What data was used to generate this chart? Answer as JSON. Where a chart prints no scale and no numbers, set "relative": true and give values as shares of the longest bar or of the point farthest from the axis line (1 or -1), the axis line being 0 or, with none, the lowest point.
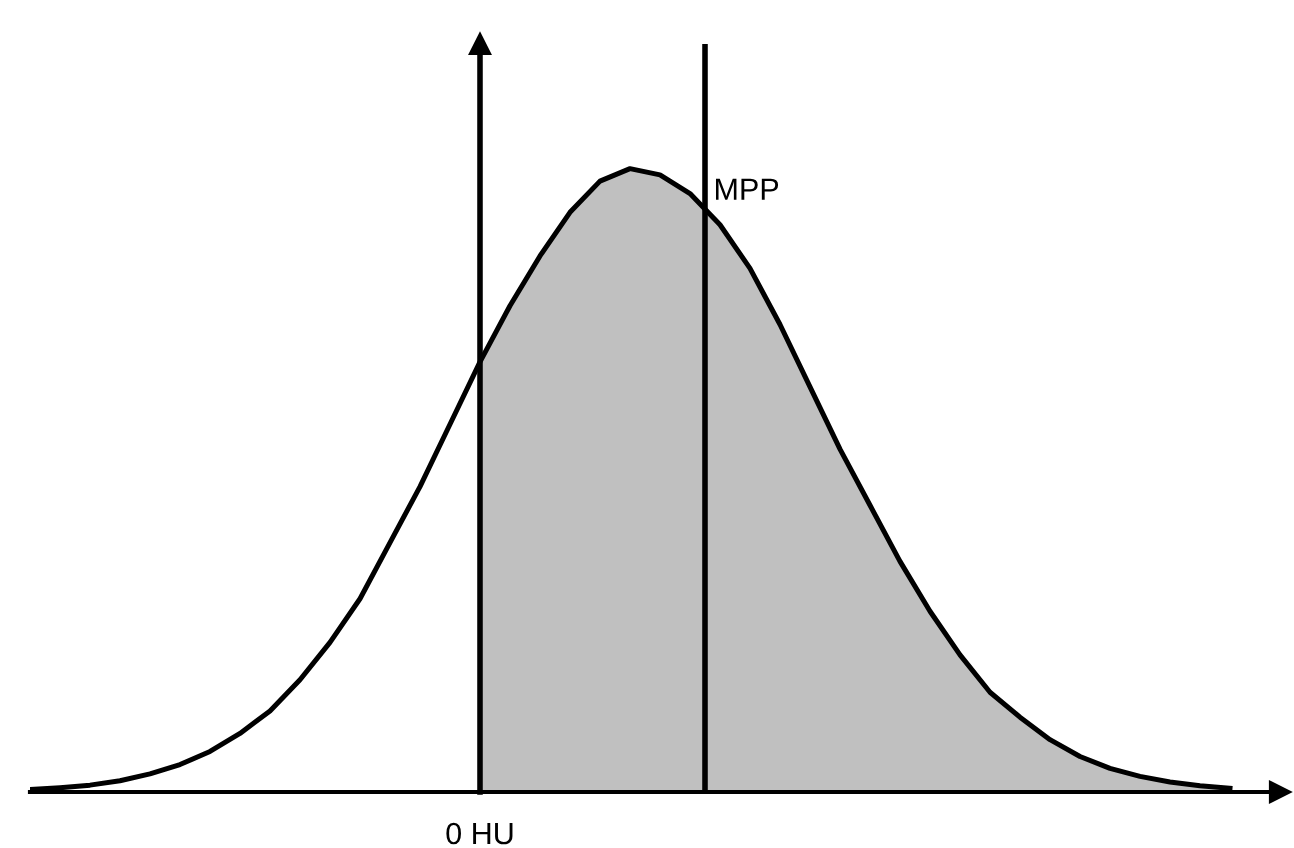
{
  "chart_data": {
    "type": "line",
    "relative": true,
    "categories": [
      null,
      null,
      null,
      null,
      null,
      null,
      null,
      null,
      null,
      null,
      null,
      null,
      null,
      null,
      null,
      null,
      null,
      null,
      null,
      null,
      null,
      null,
      null,
      null,
      null,
      null,
      null,
      null,
      null,
      null,
      null,
      null,
      null,
      null,
      null,
      null,
      null,
      null,
      null,
      null,
      null
    ],
    "series": [
      {
        "type": "area",
        "color": "#c0c0c0",
        "values": [
          null,
          null,
          null,
          null,
          null,
          null,
          null,
          null,
          null,
          null,
          null,
          null,
          null,
          null,
          null,
          0.69,
          0.78,
          0.86,
          0.93,
          0.98,
          1.0,
          0.99,
          0.96,
          0.91,
          0.84,
          0.75,
          0.65,
          0.55,
          0.46,
          0.37,
          0.29,
          0.22,
          0.16,
          0.12,
          0.084,
          0.057,
          0.038,
          0.025,
          0.016,
          0.01,
          0.006
        ]
      },
      {
        "color": "#000000",
        "values": [
          0.004,
          0.007,
          0.011,
          0.018,
          0.029,
          0.044,
          0.065,
          0.094,
          0.13,
          0.18,
          0.24,
          0.31,
          0.4,
          0.49,
          0.59,
          0.69,
          0.78,
          0.86,
          0.93,
          0.98,
          1.0,
          0.99,
          0.96,
          0.91,
          0.84,
          0.75,
          0.65,
          0.55,
          0.46,
          0.37,
          0.29,
          0.22,
          0.16,
          0.12,
          0.084,
          0.057,
          0.038,
          0.025,
          0.016,
          0.01,
          0.006
        ]
      }
    ],
    "annotations": [
      "0 HU",
      "MPP"
    ],
    "legend": false,
    "marker": "none",
    "line_style": "solid"
  }
}
